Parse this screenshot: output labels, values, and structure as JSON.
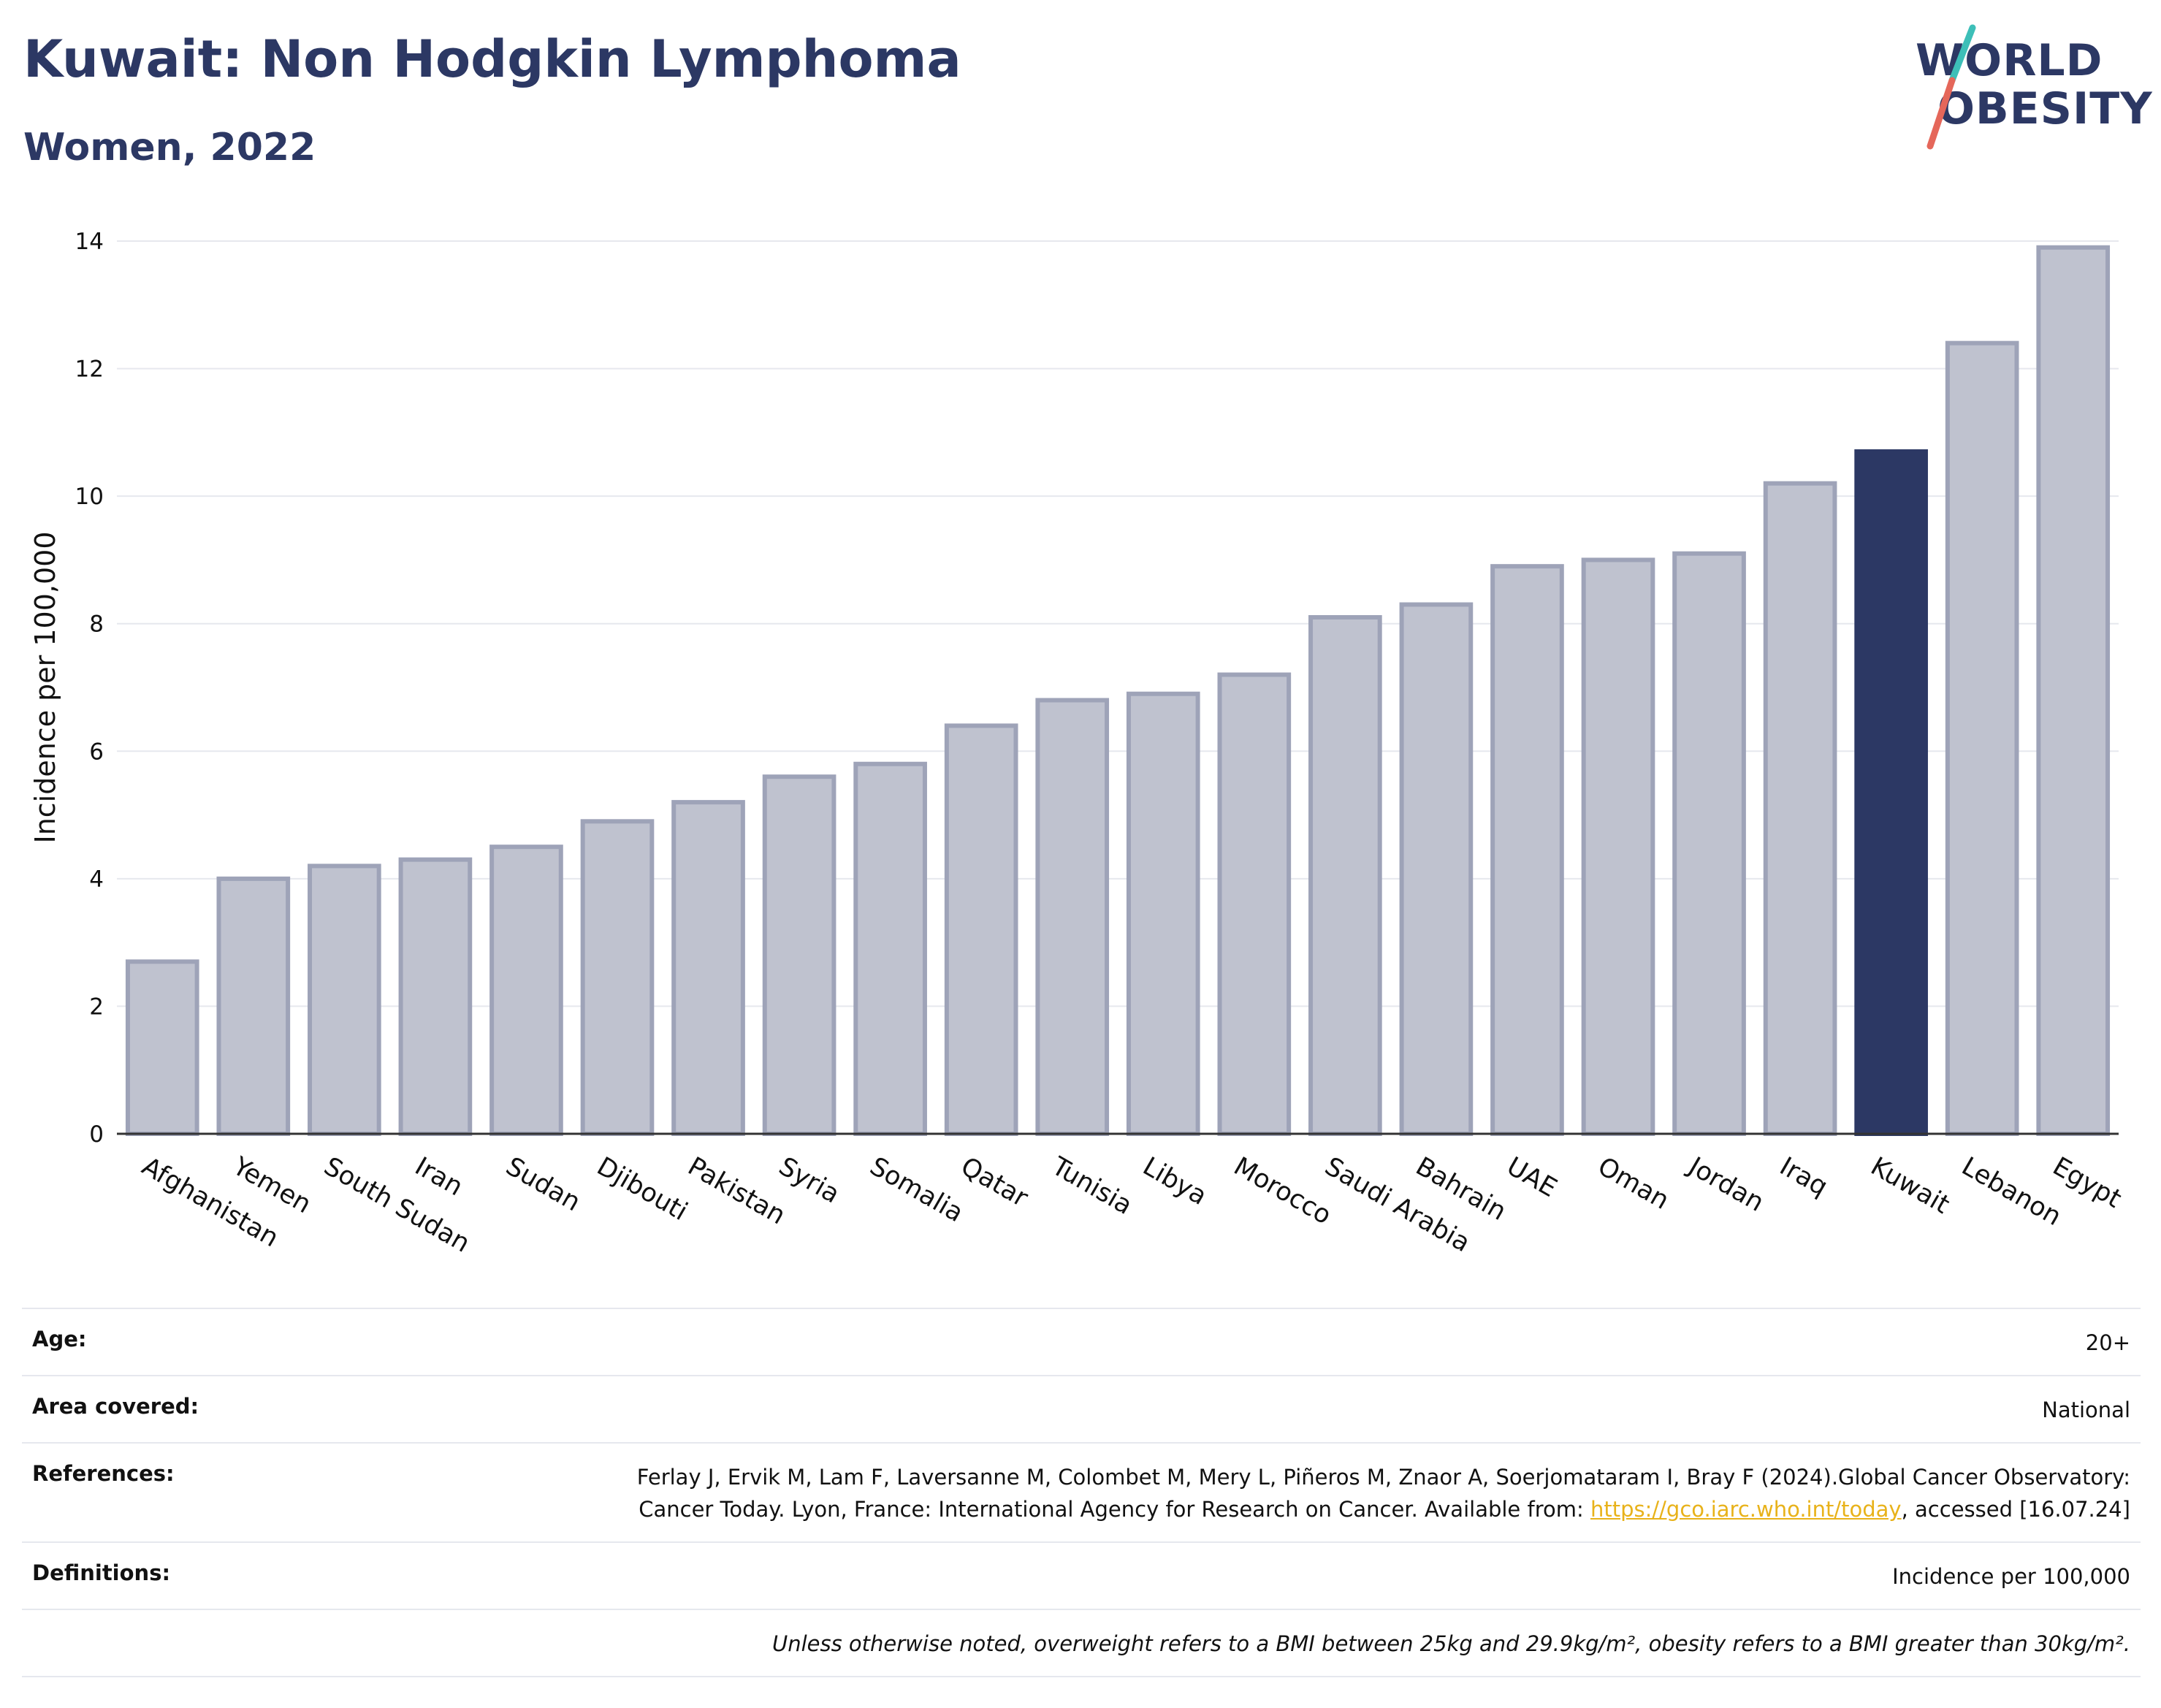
{
  "header": {
    "title": "Kuwait: Non Hodgkin Lymphoma",
    "subtitle": "Women, 2022"
  },
  "logo": {
    "line1": "WORLD",
    "line2": "OBESITY",
    "colors": {
      "text": "#2c3864",
      "slash_top": "#3dbfb8",
      "slash_bottom": "#e5675a"
    }
  },
  "chart_data": {
    "type": "bar",
    "title": "",
    "xlabel": "",
    "ylabel": "Incidence per 100,000",
    "ylim": [
      0,
      14
    ],
    "yticks": [
      0,
      2,
      4,
      6,
      8,
      10,
      12,
      14
    ],
    "grid": true,
    "highlight": "Kuwait",
    "colors": {
      "default": "#bfc2cf",
      "default_edge": "#9ea3b8",
      "highlight": "#2c3864",
      "grid": "#e6e8ee"
    },
    "categories": [
      "Afghanistan",
      "Yemen",
      "South Sudan",
      "Iran",
      "Sudan",
      "Djibouti",
      "Pakistan",
      "Syria",
      "Somalia",
      "Qatar",
      "Tunisia",
      "Libya",
      "Morocco",
      "Saudi Arabia",
      "Bahrain",
      "UAE",
      "Oman",
      "Jordan",
      "Iraq",
      "Kuwait",
      "Lebanon",
      "Egypt"
    ],
    "values": [
      2.7,
      4.0,
      4.2,
      4.3,
      4.5,
      4.9,
      5.2,
      5.6,
      5.8,
      6.4,
      6.8,
      6.9,
      7.2,
      8.1,
      8.3,
      8.9,
      9.0,
      9.1,
      10.2,
      10.7,
      12.4,
      13.9
    ]
  },
  "details": {
    "age_label": "Age:",
    "age_value": "20+",
    "area_label": "Area covered:",
    "area_value": "National",
    "references_label": "References:",
    "references_text_1": "Ferlay J, Ervik M, Lam F, Laversanne M, Colombet M, Mery L, Piñeros M, Znaor A, Soerjomataram I, Bray F (2024).Global Cancer Observatory: Cancer Today. Lyon, France: International Agency for Research on Cancer. Available from: ",
    "references_link": "https://gco.iarc.who.int/today",
    "references_text_2": ", accessed [16.07.24]",
    "definitions_label": "Definitions:",
    "definitions_value": "Incidence per 100,000",
    "note": "Unless otherwise noted, overweight refers to a BMI between 25kg and 29.9kg/m², obesity refers to a BMI greater than 30kg/m²."
  }
}
